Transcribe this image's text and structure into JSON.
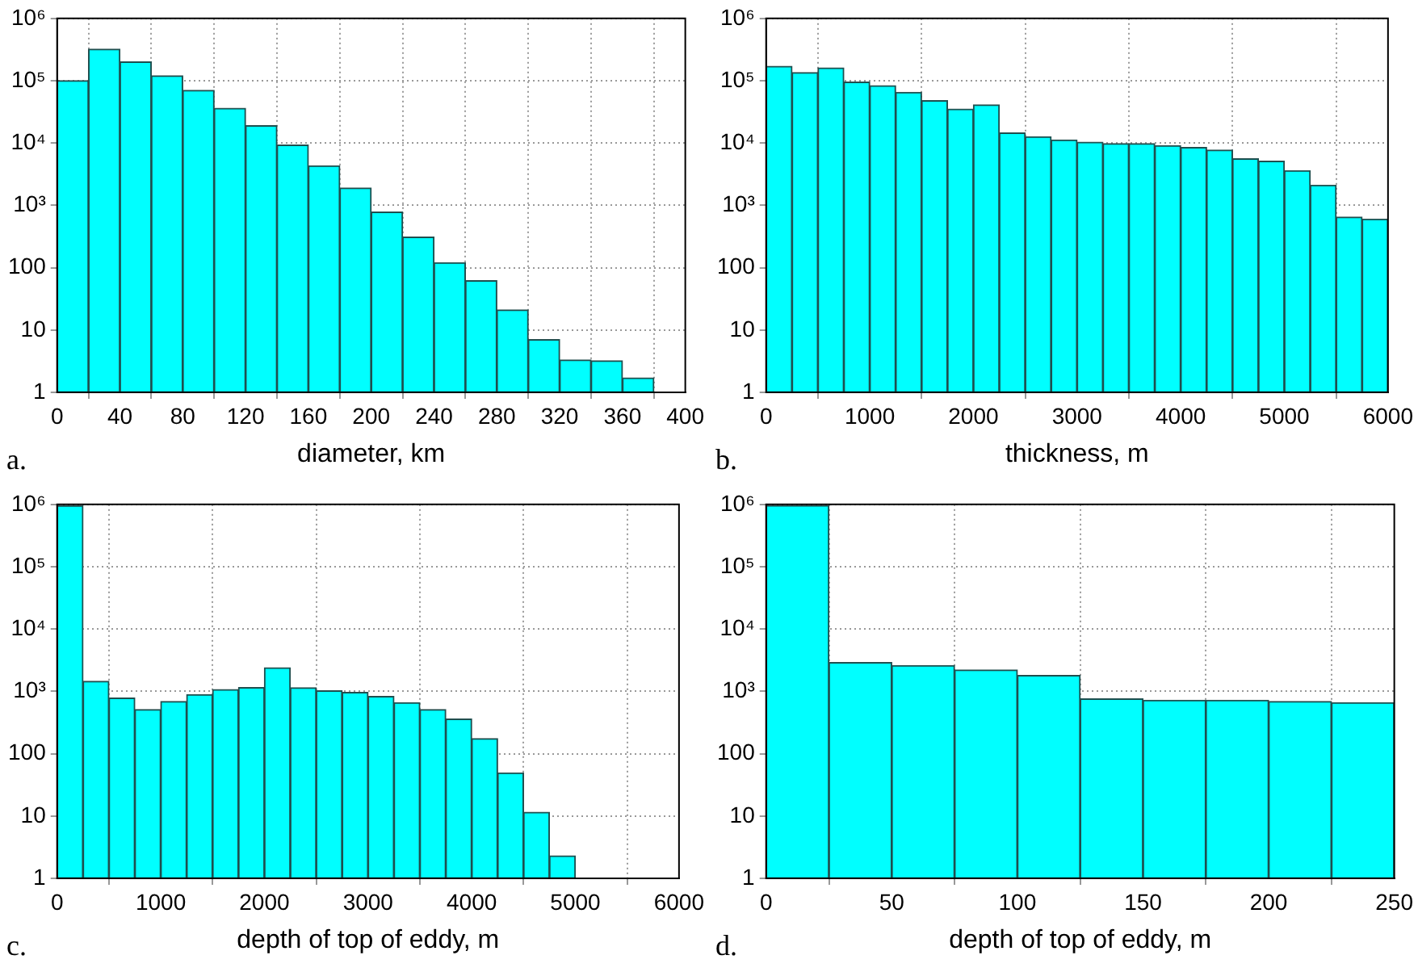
{
  "chart_data": [
    {
      "type": "histogram",
      "xlabel": "diameter, km",
      "annotations": [
        "a."
      ],
      "bins": [
        0,
        20,
        40,
        60,
        80,
        100,
        120,
        140,
        160,
        180,
        200,
        220,
        240,
        260,
        280,
        300,
        320,
        340,
        360,
        380
      ],
      "values": [
        100000,
        320000,
        200000,
        120000,
        70000,
        36000,
        19000,
        9300,
        4300,
        1900,
        780,
        310,
        120,
        62,
        21,
        7,
        3.3,
        3.2,
        1.7
      ],
      "color": "#00ffff",
      "log": "y",
      "grid": true,
      "xlim": [
        0,
        400
      ],
      "xticks": [
        0,
        40,
        80,
        120,
        160,
        200,
        240,
        280,
        320,
        360,
        400
      ],
      "ylim": [
        1,
        1000000
      ],
      "yticks": [
        1,
        10,
        100,
        {
          "value": 1000,
          "label": "10³"
        },
        {
          "value": 10000,
          "label": "10⁴"
        },
        {
          "value": 100000,
          "label": "10⁵"
        },
        {
          "value": 1000000,
          "label": "10⁶"
        }
      ]
    },
    {
      "type": "histogram",
      "xlabel": "thickness, m",
      "annotations": [
        "b."
      ],
      "bins": [
        0,
        250,
        500,
        750,
        1000,
        1250,
        1500,
        1750,
        2000,
        2250,
        2500,
        2750,
        3000,
        3250,
        3500,
        3750,
        4000,
        4250,
        4500,
        4750,
        5000,
        5250,
        5500,
        5750,
        6000
      ],
      "values": [
        170000,
        135000,
        160000,
        95000,
        83000,
        65000,
        48000,
        35000,
        41000,
        14500,
        12600,
        11200,
        10300,
        9800,
        9800,
        9100,
        8500,
        7700,
        5600,
        5100,
        3600,
        2100,
        650,
        600
      ],
      "color": "#00ffff",
      "log": "y",
      "grid": true,
      "xlim": [
        0,
        6000
      ],
      "xticks": [
        0,
        1000,
        2000,
        3000,
        4000,
        5000,
        6000
      ],
      "ylim": [
        1,
        1000000
      ],
      "yticks": [
        1,
        10,
        100,
        {
          "value": 1000,
          "label": "10³"
        },
        {
          "value": 10000,
          "label": "10⁴"
        },
        {
          "value": 100000,
          "label": "10⁵"
        },
        {
          "value": 1000000,
          "label": "10⁶"
        }
      ]
    },
    {
      "type": "histogram",
      "xlabel": "depth of top of eddy, m",
      "annotations": [
        "c."
      ],
      "bins": [
        0,
        250,
        500,
        750,
        1000,
        1250,
        1500,
        1750,
        2000,
        2250,
        2500,
        2750,
        3000,
        3250,
        3500,
        3750,
        4000,
        4250,
        4500,
        4750,
        5000
      ],
      "values": [
        950000,
        1450,
        780,
        510,
        690,
        890,
        1070,
        1150,
        2400,
        1140,
        1020,
        960,
        830,
        660,
        510,
        360,
        175,
        49,
        11.5,
        2.3
      ],
      "color": "#00ffff",
      "log": "y",
      "grid": true,
      "xlim": [
        0,
        6000
      ],
      "xticks": [
        0,
        1000,
        2000,
        3000,
        4000,
        5000,
        6000
      ],
      "ylim": [
        1,
        1000000
      ],
      "yticks": [
        1,
        10,
        100,
        {
          "value": 1000,
          "label": "10³"
        },
        {
          "value": 10000,
          "label": "10⁴"
        },
        {
          "value": 100000,
          "label": "10⁵"
        },
        {
          "value": 1000000,
          "label": "10⁶"
        }
      ]
    },
    {
      "type": "histogram",
      "xlabel": "depth of top of eddy, m",
      "annotations": [
        "d."
      ],
      "bins": [
        0,
        25,
        50,
        75,
        100,
        125,
        150,
        175,
        200,
        225,
        250
      ],
      "values": [
        960000,
        2900,
        2600,
        2200,
        1800,
        760,
        720,
        720,
        690,
        660
      ],
      "color": "#00ffff",
      "log": "y",
      "grid": true,
      "xlim": [
        0,
        250
      ],
      "xticks": [
        0,
        50,
        100,
        150,
        200,
        250
      ],
      "ylim": [
        1,
        1000000
      ],
      "yticks": [
        1,
        10,
        100,
        {
          "value": 1000,
          "label": "10³"
        },
        {
          "value": 10000,
          "label": "10⁴"
        },
        {
          "value": 100000,
          "label": "10⁵"
        },
        {
          "value": 1000000,
          "label": "10⁶"
        }
      ]
    }
  ]
}
